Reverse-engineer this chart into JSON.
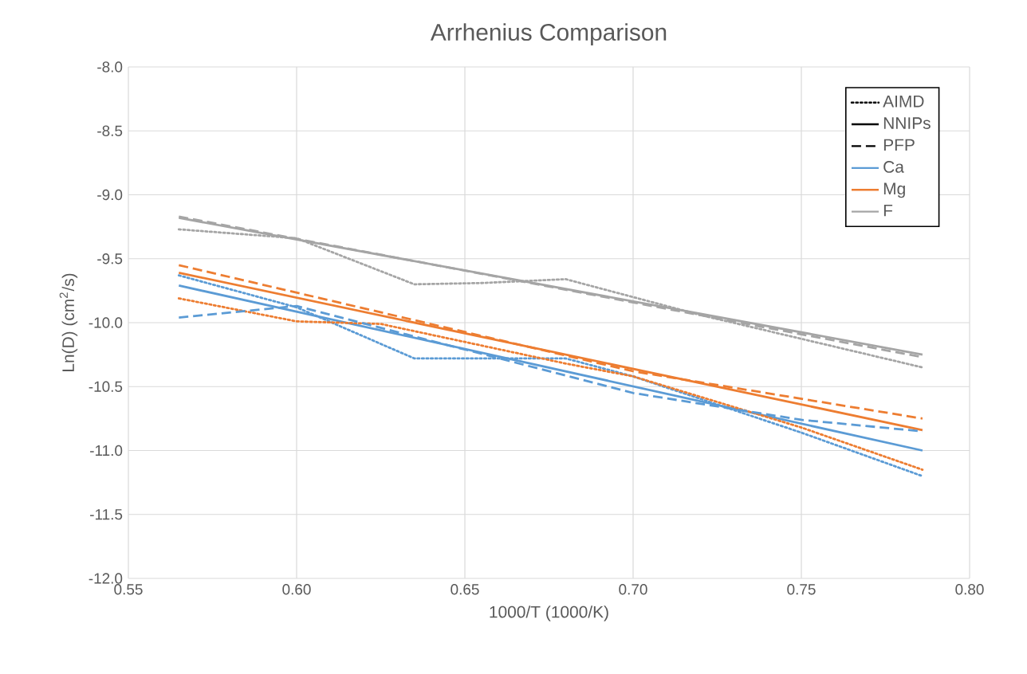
{
  "chart_data": {
    "type": "line",
    "title": "Arrhenius Comparison",
    "xlabel": "1000/T (1000/K)",
    "ylabel": "Ln(D) (cm$^{2}$/s)",
    "xlim": [
      0.55,
      0.8
    ],
    "xticks": [
      0.55,
      {
        "value": 0.6,
        "label": "0.60"
      },
      0.65,
      {
        "value": 0.7,
        "label": "0.70"
      },
      0.75,
      {
        "value": 0.8,
        "label": "0.80"
      }
    ],
    "ylim": [
      -12,
      -8
    ],
    "yticks": [
      {
        "value": -12,
        "label": "-12.0"
      },
      -11.5,
      {
        "value": -11,
        "label": "-11.0"
      },
      -10.5,
      {
        "value": -10,
        "label": "-10.0"
      },
      -9.5,
      {
        "value": -9,
        "label": "-9.0"
      },
      -8.5,
      {
        "value": -8,
        "label": "-8.0"
      }
    ],
    "grid": true,
    "legend": "top right",
    "marker": "none",
    "series": [
      {
        "name": "AIMD",
        "color": "#000000",
        "line_style": "dotted"
      },
      {
        "name": "NNIPs",
        "color": "#000000",
        "line_style": "solid"
      },
      {
        "name": "PFP",
        "color": "#000000",
        "line_style": "dashed"
      },
      {
        "name": "Ca",
        "color": "#5b9bd5",
        "line_style": "solid",
        "x": [
          0.565,
          0.786
        ],
        "values": [
          -9.71,
          -11.0
        ]
      },
      {
        "name": "Mg",
        "color": "#ed7d31",
        "line_style": "solid",
        "x": [
          0.565,
          0.786
        ],
        "values": [
          -9.61,
          -10.84
        ]
      },
      {
        "name": "F",
        "color": "#a5a5a5",
        "line_style": "solid",
        "x": [
          0.565,
          0.786
        ],
        "values": [
          -9.18,
          -10.25
        ]
      },
      {
        "color": "#5b9bd5",
        "line_style": "dotted",
        "x": [
          0.565,
          0.6,
          0.635,
          0.66,
          0.68,
          0.7,
          0.75,
          0.786
        ],
        "values": [
          -9.63,
          -9.88,
          -10.28,
          -10.28,
          -10.28,
          -10.42,
          -10.86,
          -11.2
        ]
      },
      {
        "color": "#ed7d31",
        "line_style": "dotted",
        "x": [
          0.565,
          0.6,
          0.625,
          0.68,
          0.7,
          0.75,
          0.786
        ],
        "values": [
          -9.81,
          -9.99,
          -10.01,
          -10.32,
          -10.42,
          -10.82,
          -11.15
        ]
      },
      {
        "color": "#a5a5a5",
        "line_style": "dotted",
        "x": [
          0.565,
          0.6,
          0.635,
          0.655,
          0.68,
          0.72,
          0.786
        ],
        "values": [
          -9.27,
          -9.34,
          -9.7,
          -9.69,
          -9.66,
          -9.94,
          -10.35
        ]
      },
      {
        "color": "#5b9bd5",
        "line_style": "dashed",
        "x": [
          0.565,
          0.6,
          0.7,
          0.75,
          0.786
        ],
        "values": [
          -9.96,
          -9.87,
          -10.55,
          -10.76,
          -10.85
        ]
      },
      {
        "color": "#ed7d31",
        "line_style": "dashed",
        "x": [
          0.565,
          0.7,
          0.786
        ],
        "values": [
          -9.55,
          -10.38,
          -10.75
        ]
      },
      {
        "color": "#a5a5a5",
        "line_style": "dashed",
        "x": [
          0.565,
          0.786
        ],
        "values": [
          -9.17,
          -10.27
        ]
      }
    ]
  }
}
